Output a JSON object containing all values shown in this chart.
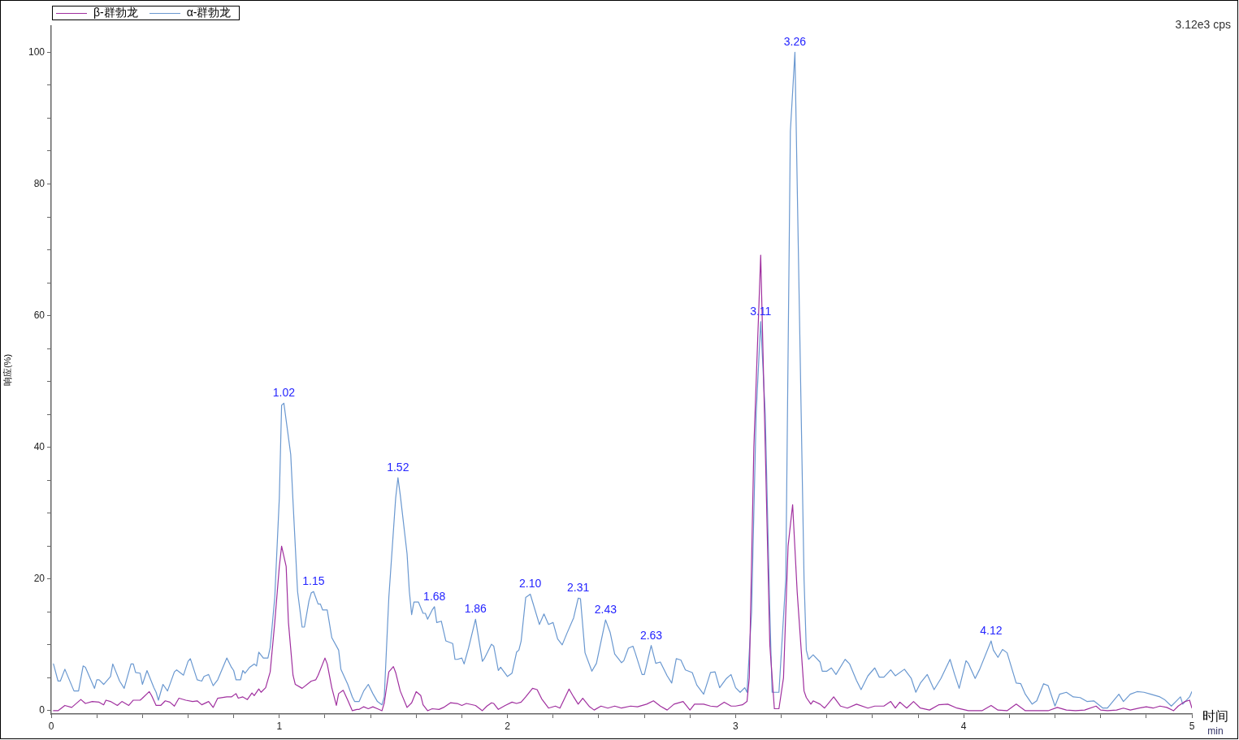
{
  "chart_data": {
    "type": "line",
    "xlabel": "时间\nmin",
    "ylabel": "响应(%)",
    "legend": "top left",
    "xlim": [
      0,
      5
    ],
    "xticks": [
      0,
      {
        "value": 0.2,
        "label": null
      },
      {
        "value": 0.4,
        "label": null
      },
      {
        "value": 0.6,
        "label": null
      },
      {
        "value": 0.8,
        "label": null
      },
      1,
      {
        "value": 1.2,
        "label": null
      },
      {
        "value": 1.4,
        "label": null
      },
      {
        "value": 1.6,
        "label": null
      },
      {
        "value": 1.8,
        "label": null
      },
      2,
      {
        "value": 2.2,
        "label": null
      },
      {
        "value": 2.4,
        "label": null
      },
      {
        "value": 2.6,
        "label": null
      },
      {
        "value": 2.8,
        "label": null
      },
      3,
      {
        "value": 3.2,
        "label": null
      },
      {
        "value": 3.4,
        "label": null
      },
      {
        "value": 3.6,
        "label": null
      },
      {
        "value": 3.8,
        "label": null
      },
      4,
      {
        "value": 4.2,
        "label": null
      },
      {
        "value": 4.4,
        "label": null
      },
      {
        "value": 4.6,
        "label": null
      },
      {
        "value": 4.8,
        "label": null
      },
      5
    ],
    "ylim": [
      -0.5,
      104
    ],
    "yticks": [
      0,
      {
        "value": 5,
        "label": null
      },
      {
        "value": 10,
        "label": null
      },
      {
        "value": 15,
        "label": null
      },
      20,
      {
        "value": 25,
        "label": null
      },
      {
        "value": 30,
        "label": null
      },
      {
        "value": 35,
        "label": null
      },
      40,
      {
        "value": 45,
        "label": null
      },
      {
        "value": 50,
        "label": null
      },
      {
        "value": 55,
        "label": null
      },
      60,
      {
        "value": 65,
        "label": null
      },
      {
        "value": 70,
        "label": null
      },
      {
        "value": 75,
        "label": null
      },
      80,
      {
        "value": 85,
        "label": null
      },
      {
        "value": 90,
        "label": null
      },
      {
        "value": 95,
        "label": null
      },
      100
    ],
    "annotations": [
      "3.12e3 cps",
      {
        "text": "1.02",
        "x": 1.02,
        "y": 46.7
      },
      {
        "text": "1.15",
        "x": 1.15,
        "y": 18.1
      },
      {
        "text": "1.52",
        "x": 1.52,
        "y": 35.4
      },
      {
        "text": "1.68",
        "x": 1.68,
        "y": 15.8
      },
      {
        "text": "1.86",
        "x": 1.86,
        "y": 13.9
      },
      {
        "text": "2.10",
        "x": 2.1,
        "y": 17.7
      },
      {
        "text": "2.31",
        "x": 2.31,
        "y": 17.1
      },
      {
        "text": "2.43",
        "x": 2.43,
        "y": 13.8
      },
      {
        "text": "2.63",
        "x": 2.63,
        "y": 9.9
      },
      {
        "text": "3.11",
        "x": 3.11,
        "y": 59.1
      },
      {
        "text": "3.26",
        "x": 3.26,
        "y": 100
      },
      {
        "text": "4.12",
        "x": 4.12,
        "y": 10.6
      }
    ],
    "series": [
      {
        "name": "β-群勃龙",
        "color": "#a0309f",
        "x": [
          0.01,
          0.03,
          0.06,
          0.09,
          0.13,
          0.15,
          0.18,
          0.21,
          0.23,
          0.24,
          0.26,
          0.29,
          0.31,
          0.34,
          0.36,
          0.39,
          0.4,
          0.43,
          0.44,
          0.46,
          0.48,
          0.5,
          0.52,
          0.54,
          0.56,
          0.59,
          0.62,
          0.64,
          0.66,
          0.69,
          0.71,
          0.73,
          0.77,
          0.79,
          0.81,
          0.82,
          0.84,
          0.86,
          0.88,
          0.89,
          0.91,
          0.92,
          0.94,
          0.96,
          0.98,
          1.0,
          1.01,
          1.03,
          1.04,
          1.06,
          1.07,
          1.1,
          1.14,
          1.16,
          1.17,
          1.2,
          1.21,
          1.23,
          1.25,
          1.26,
          1.28,
          1.3,
          1.32,
          1.34,
          1.35,
          1.37,
          1.39,
          1.41,
          1.43,
          1.45,
          1.46,
          1.48,
          1.5,
          1.51,
          1.53,
          1.56,
          1.58,
          1.6,
          1.62,
          1.63,
          1.65,
          1.67,
          1.7,
          1.72,
          1.75,
          1.78,
          1.8,
          1.82,
          1.86,
          1.89,
          1.91,
          1.93,
          1.94,
          1.96,
          1.99,
          2.02,
          2.04,
          2.06,
          2.08,
          2.11,
          2.13,
          2.15,
          2.18,
          2.21,
          2.23,
          2.27,
          2.29,
          2.31,
          2.33,
          2.36,
          2.38,
          2.41,
          2.44,
          2.47,
          2.5,
          2.54,
          2.57,
          2.61,
          2.64,
          2.67,
          2.7,
          2.73,
          2.77,
          2.8,
          2.82,
          2.86,
          2.89,
          2.92,
          2.95,
          2.98,
          3.0,
          3.03,
          3.05,
          3.06,
          3.08,
          3.11,
          3.13,
          3.15,
          3.17,
          3.19,
          3.21,
          3.23,
          3.25,
          3.27,
          3.3,
          3.31,
          3.33,
          3.34,
          3.37,
          3.39,
          3.43,
          3.46,
          3.49,
          3.53,
          3.58,
          3.61,
          3.65,
          3.68,
          3.7,
          3.72,
          3.75,
          3.78,
          3.81,
          3.85,
          3.89,
          3.93,
          3.97,
          4.02,
          4.08,
          4.12,
          4.15,
          4.19,
          4.23,
          4.27,
          4.33,
          4.37,
          4.41,
          4.45,
          4.49,
          4.53,
          4.58,
          4.6,
          4.63,
          4.67,
          4.7,
          4.73,
          4.77,
          4.8,
          4.83,
          4.86,
          4.89,
          4.92,
          4.94,
          4.97,
          4.99,
          5.0
        ],
        "values": [
          0.0,
          0.0,
          0.8,
          0.5,
          1.7,
          1.1,
          1.4,
          1.3,
          0.9,
          1.6,
          1.4,
          0.8,
          1.4,
          0.8,
          1.6,
          1.6,
          1.9,
          2.9,
          2.3,
          0.8,
          0.8,
          1.5,
          1.3,
          0.7,
          1.9,
          1.6,
          1.4,
          1.5,
          0.9,
          1.4,
          0.5,
          1.9,
          2.1,
          2.1,
          2.6,
          1.9,
          2.1,
          1.7,
          2.7,
          2.3,
          3.3,
          2.8,
          3.5,
          5.9,
          13.4,
          21.9,
          25.0,
          21.9,
          13.4,
          5.4,
          4.0,
          3.4,
          4.5,
          4.7,
          5.4,
          8.0,
          7.1,
          3.5,
          0.8,
          2.6,
          3.1,
          1.6,
          0.0,
          0.2,
          0.2,
          0.6,
          0.3,
          0.6,
          0.3,
          0.0,
          1.2,
          5.9,
          6.7,
          5.8,
          3.0,
          0.5,
          1.2,
          2.9,
          2.3,
          0.9,
          0.0,
          0.3,
          0.2,
          0.5,
          1.2,
          1.1,
          0.8,
          1.1,
          0.8,
          0.0,
          0.7,
          1.2,
          1.1,
          0.2,
          0.8,
          1.3,
          1.1,
          1.3,
          2.1,
          3.4,
          3.2,
          1.8,
          0.4,
          0.7,
          0.4,
          3.3,
          2.1,
          1.0,
          1.9,
          0.6,
          0.1,
          0.7,
          0.4,
          0.7,
          0.4,
          0.7,
          0.6,
          1.0,
          1.5,
          0.7,
          0.1,
          1.0,
          1.4,
          0.1,
          1.0,
          1.0,
          0.7,
          0.6,
          1.3,
          0.7,
          0.7,
          0.9,
          1.4,
          5,
          40,
          69.2,
          40,
          10,
          0.3,
          0.3,
          5,
          25,
          31.3,
          18,
          3.0,
          2.0,
          1.0,
          1.5,
          1.0,
          0.4,
          2.1,
          0.7,
          0.4,
          1.0,
          0.4,
          0.7,
          0.7,
          1.4,
          0.4,
          1.3,
          0.4,
          1.4,
          0.4,
          0.1,
          0.9,
          1.0,
          0.4,
          0.0,
          0.0,
          0.8,
          0.1,
          0.0,
          1.0,
          0.0,
          0.0,
          0.0,
          0.5,
          0.1,
          0.0,
          0.1,
          0.7,
          0.1,
          0.0,
          0.1,
          0.4,
          0.1,
          0.4,
          0.6,
          0.4,
          0.7,
          0.5,
          0.0,
          0.7,
          1.4,
          1.6,
          0.4
        ]
      },
      {
        "name": "α-群勃龙",
        "color": "#6a98d0",
        "x": [
          0.01,
          0.03,
          0.04,
          0.06,
          0.1,
          0.12,
          0.14,
          0.15,
          0.19,
          0.2,
          0.21,
          0.23,
          0.26,
          0.27,
          0.3,
          0.32,
          0.35,
          0.36,
          0.37,
          0.39,
          0.4,
          0.42,
          0.45,
          0.46,
          0.47,
          0.49,
          0.51,
          0.54,
          0.55,
          0.58,
          0.6,
          0.61,
          0.64,
          0.66,
          0.67,
          0.69,
          0.71,
          0.73,
          0.77,
          0.79,
          0.8,
          0.81,
          0.83,
          0.84,
          0.85,
          0.87,
          0.89,
          0.9,
          0.91,
          0.93,
          0.95,
          0.96,
          0.98,
          1.0,
          1.01,
          1.02,
          1.05,
          1.06,
          1.08,
          1.1,
          1.11,
          1.13,
          1.14,
          1.15,
          1.17,
          1.18,
          1.19,
          1.21,
          1.23,
          1.26,
          1.27,
          1.3,
          1.32,
          1.33,
          1.35,
          1.37,
          1.39,
          1.41,
          1.43,
          1.45,
          1.46,
          1.48,
          1.51,
          1.52,
          1.53,
          1.56,
          1.57,
          1.58,
          1.59,
          1.61,
          1.63,
          1.64,
          1.65,
          1.67,
          1.68,
          1.69,
          1.71,
          1.73,
          1.76,
          1.77,
          1.78,
          1.8,
          1.81,
          1.83,
          1.86,
          1.89,
          1.9,
          1.93,
          1.94,
          1.96,
          1.97,
          2.0,
          2.02,
          2.04,
          2.05,
          2.06,
          2.08,
          2.1,
          2.14,
          2.16,
          2.18,
          2.2,
          2.22,
          2.24,
          2.26,
          2.29,
          2.31,
          2.32,
          2.34,
          2.37,
          2.39,
          2.43,
          2.45,
          2.47,
          2.5,
          2.51,
          2.53,
          2.55,
          2.56,
          2.59,
          2.6,
          2.63,
          2.65,
          2.67,
          2.7,
          2.72,
          2.74,
          2.76,
          2.78,
          2.81,
          2.83,
          2.86,
          2.89,
          2.91,
          2.93,
          2.96,
          2.98,
          3.0,
          3.02,
          3.04,
          3.05,
          3.07,
          3.09,
          3.11,
          3.13,
          3.15,
          3.16,
          3.19,
          3.22,
          3.24,
          3.26,
          3.28,
          3.3,
          3.31,
          3.32,
          3.34,
          3.37,
          3.38,
          3.4,
          3.42,
          3.44,
          3.48,
          3.5,
          3.53,
          3.55,
          3.58,
          3.61,
          3.63,
          3.65,
          3.68,
          3.7,
          3.74,
          3.77,
          3.79,
          3.81,
          3.84,
          3.87,
          3.9,
          3.94,
          3.96,
          3.98,
          4.01,
          4.02,
          4.05,
          4.07,
          4.12,
          4.13,
          4.15,
          4.17,
          4.19,
          4.23,
          4.25,
          4.27,
          4.3,
          4.32,
          4.35,
          4.37,
          4.4,
          4.42,
          4.45,
          4.48,
          4.51,
          4.54,
          4.57,
          4.61,
          4.63,
          4.68,
          4.7,
          4.73,
          4.76,
          4.79,
          4.82,
          4.86,
          4.88,
          4.91,
          4.93,
          4.95,
          4.96,
          4.99,
          5.0
        ],
        "values": [
          7.1,
          4.5,
          4.5,
          6.3,
          3.0,
          3.0,
          6.8,
          6.6,
          3.4,
          4.7,
          4.7,
          4.0,
          5.2,
          7.1,
          4.5,
          3.4,
          7.1,
          7.1,
          5.8,
          5.7,
          4.0,
          6.1,
          3.5,
          2.8,
          1.6,
          4.0,
          3.0,
          5.9,
          6.2,
          5.4,
          7.5,
          7.9,
          4.7,
          4.5,
          5.2,
          5.5,
          3.8,
          4.7,
          8.0,
          6.6,
          6.1,
          4.7,
          4.7,
          6.1,
          5.7,
          6.6,
          7.1,
          6.8,
          8.9,
          8.0,
          8.0,
          9.6,
          17.2,
          32.3,
          46.4,
          46.7,
          38.9,
          31.8,
          18.1,
          12.7,
          12.7,
          16.7,
          17.9,
          18.1,
          16.2,
          16.2,
          15.3,
          15.3,
          11.1,
          9.2,
          6.3,
          4.0,
          2.1,
          1.4,
          1.4,
          3.0,
          4.0,
          2.6,
          1.4,
          0.9,
          2.1,
          17.2,
          32.3,
          35.4,
          32.8,
          23.8,
          18.1,
          14.6,
          16.5,
          16.5,
          14.8,
          14.8,
          13.9,
          15.3,
          15.8,
          13.4,
          13.6,
          10.6,
          10.2,
          7.8,
          7.8,
          8.0,
          7.1,
          9.6,
          13.9,
          7.5,
          8.0,
          10.1,
          9.8,
          6.1,
          6.6,
          5.2,
          5.7,
          8.9,
          9.2,
          10.6,
          17.2,
          17.7,
          13.1,
          14.7,
          13.1,
          13.4,
          10.9,
          10.0,
          11.7,
          14.1,
          17.1,
          17.0,
          8.8,
          6.0,
          7.2,
          13.8,
          11.9,
          8.6,
          7.3,
          7.6,
          9.5,
          9.8,
          8.8,
          5.5,
          5.5,
          9.9,
          7.2,
          7.4,
          5.3,
          4.2,
          7.9,
          7.7,
          6.2,
          5.8,
          3.9,
          2.5,
          5.8,
          5.9,
          3.5,
          4.9,
          5.5,
          3.5,
          2.8,
          3.5,
          2.8,
          15,
          45,
          59.1,
          45,
          15,
          2.8,
          2.8,
          20,
          88,
          100,
          60,
          20,
          9.2,
          7.8,
          8.5,
          7.4,
          6.0,
          6.0,
          6.5,
          5.5,
          7.8,
          7.1,
          4.6,
          3.2,
          5.3,
          6.5,
          5.1,
          5.1,
          6.2,
          5.3,
          6.3,
          4.9,
          2.8,
          4.2,
          5.5,
          3.2,
          4.9,
          7.8,
          5.5,
          3.4,
          7.6,
          7.2,
          4.9,
          6.3,
          10.6,
          9.2,
          8.1,
          9.3,
          8.8,
          4.2,
          4.1,
          2.5,
          1.0,
          1.5,
          4.1,
          3.8,
          0.7,
          2.5,
          2.8,
          2.1,
          2.0,
          1.4,
          1.5,
          0.4,
          0.4,
          2.5,
          1.4,
          2.5,
          2.9,
          2.8,
          2.5,
          2.1,
          1.7,
          0.7,
          1.4,
          2.1,
          1.0,
          2.1,
          2.9
        ]
      }
    ]
  }
}
